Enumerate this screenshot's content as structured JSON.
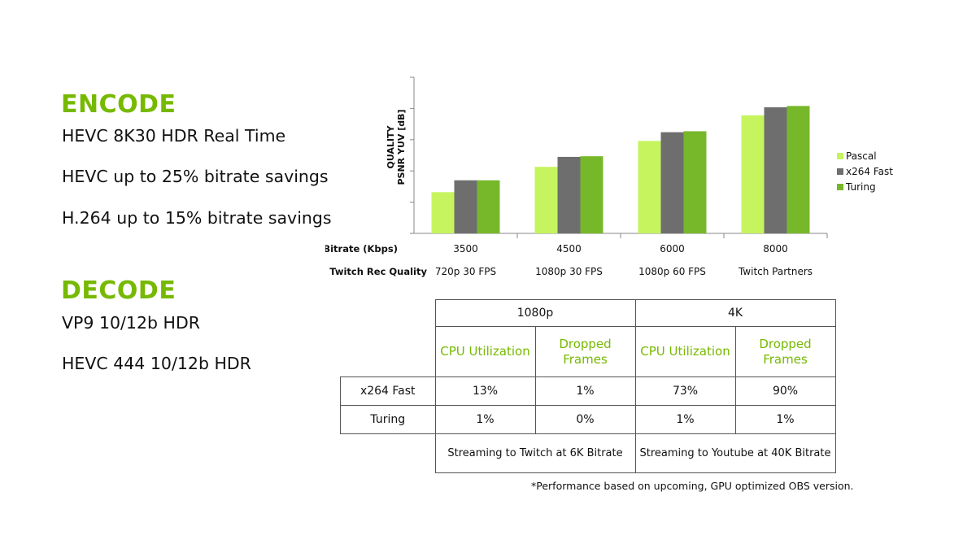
{
  "left_panel": {
    "encode_heading": "ENCODE",
    "encode_items": [
      "HEVC 8K30 HDR Real Time",
      "HEVC up to 25% bitrate savings",
      "H.264 up to 15% bitrate savings"
    ],
    "decode_heading": "DECODE",
    "decode_items": [
      "VP9 10/12b HDR",
      "HEVC 444 10/12b HDR"
    ]
  },
  "chart_data": {
    "type": "bar",
    "ylabel": "QUALITY\nPSNR YUV [dB]",
    "y_ticks_labeled": false,
    "grid": false,
    "legend_position": "right",
    "row_labels": [
      "Bitrate (Kbps)",
      "Twitch Rec Quality"
    ],
    "categories": [
      "3500",
      "4500",
      "6000",
      "8000"
    ],
    "subcategories": [
      "720p 30 FPS",
      "1080p 30 FPS",
      "1080p 60 FPS",
      "Twitch Partners"
    ],
    "ylim": [
      0,
      5
    ],
    "series": [
      {
        "name": "Pascal",
        "color": "#c6f45e",
        "values": [
          1.32,
          2.13,
          2.96,
          3.78
        ]
      },
      {
        "name": "x264 Fast",
        "color": "#6e6e6e",
        "values": [
          1.7,
          2.45,
          3.24,
          4.04
        ]
      },
      {
        "name": "Turing",
        "color": "#77b82a",
        "values": [
          1.7,
          2.47,
          3.27,
          4.08
        ]
      }
    ]
  },
  "table": {
    "groups": [
      "1080p",
      "4K"
    ],
    "subheaders": [
      "CPU Utilization",
      "Dropped Frames",
      "CPU Utilization",
      "Dropped Frames"
    ],
    "rows": [
      {
        "label": "x264 Fast",
        "values": [
          "13%",
          "1%",
          "73%",
          "90%"
        ]
      },
      {
        "label": "Turing",
        "values": [
          "1%",
          "0%",
          "1%",
          "1%"
        ]
      }
    ],
    "footers": [
      "Streaming to Twitch at 6K Bitrate",
      "Streaming to Youtube at 40K Bitrate"
    ]
  },
  "footnote": "*Performance based on upcoming, GPU optimized OBS version."
}
